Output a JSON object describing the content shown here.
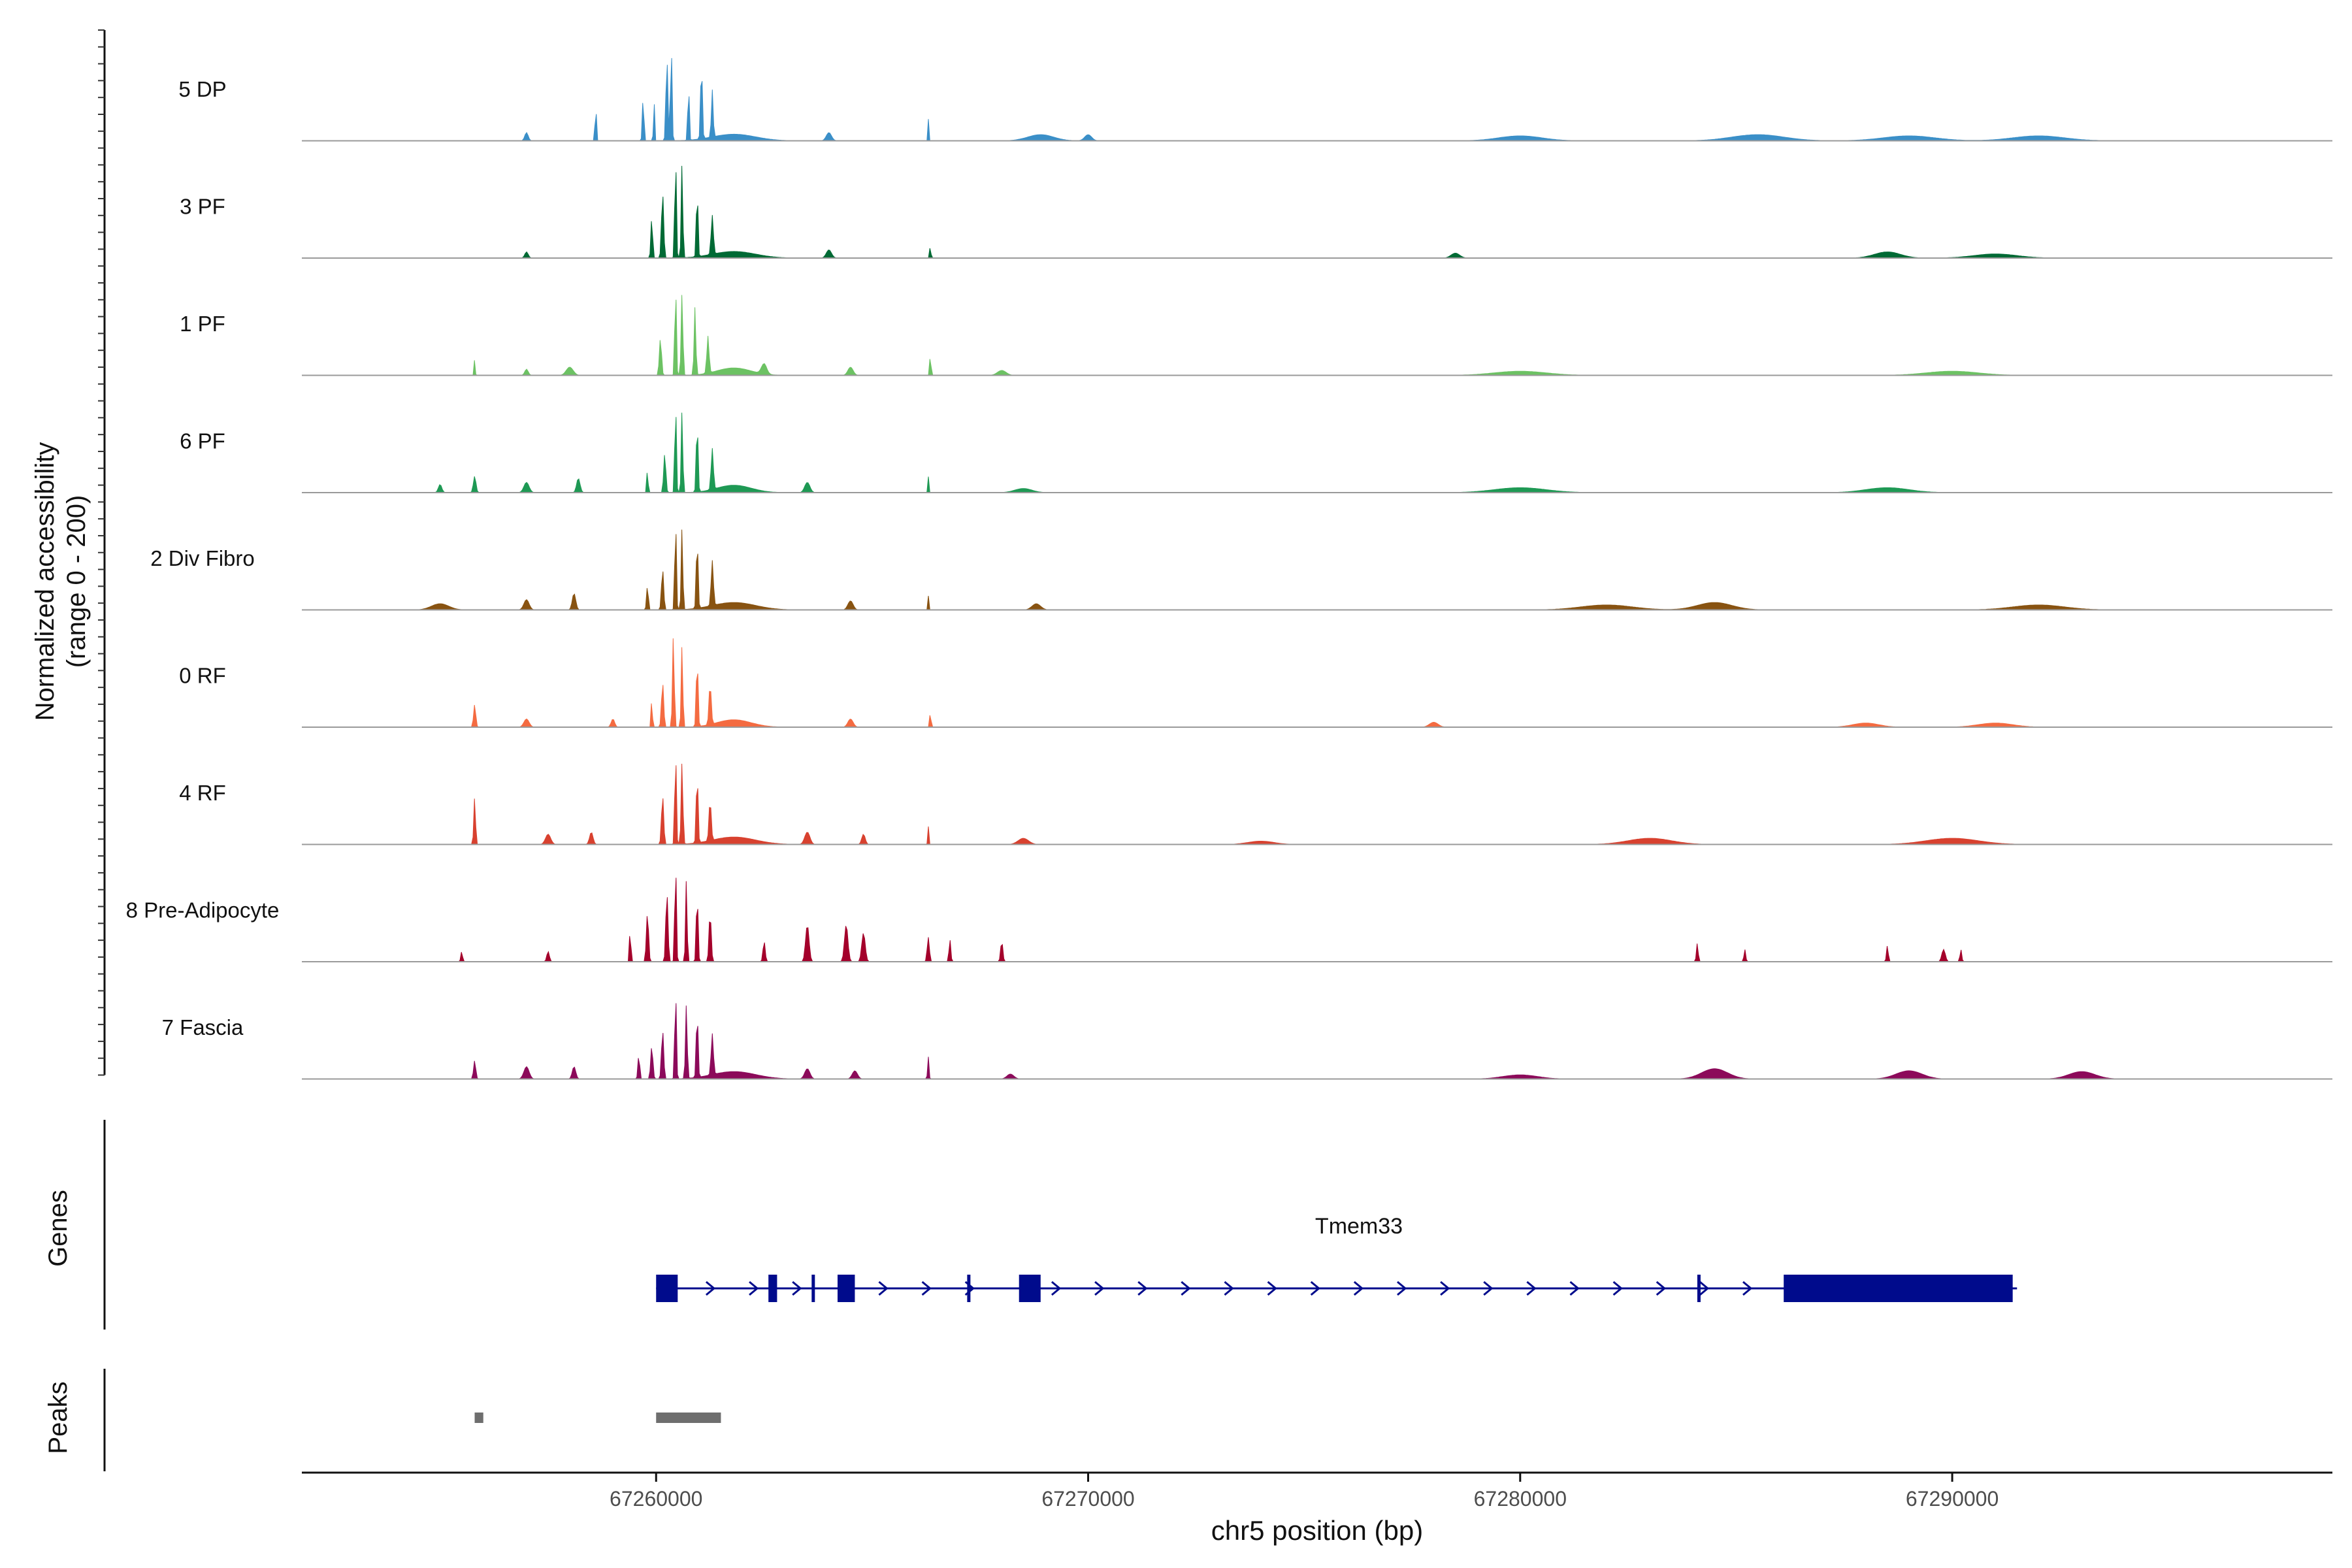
{
  "chart_data": {
    "type": "area",
    "region": "chr5:67251800-67298800",
    "y_axis_label_line1": "Normalized accessibility",
    "y_axis_label_line2": "(range 0 - 200)",
    "y_range": [
      0,
      200
    ],
    "x_label": "chr5 position (bp)",
    "x_range": [
      67251800,
      67298800
    ],
    "x_ticks": [
      {
        "value": 67260000,
        "label": "67260000"
      },
      {
        "value": 67270000,
        "label": "67270000"
      },
      {
        "value": 67280000,
        "label": "67280000"
      },
      {
        "value": 67290000,
        "label": "67290000"
      }
    ],
    "tracks": [
      {
        "name": "5 DP",
        "color": "#3a8fc8",
        "peaks": [
          [
            67258600,
            10,
            200
          ],
          [
            67259700,
            18,
            110
          ],
          [
            67259950,
            12,
            110
          ],
          [
            67260250,
            22,
            205
          ],
          [
            67260350,
            18,
            240
          ],
          [
            67260750,
            15,
            160
          ],
          [
            67261050,
            20,
            190
          ],
          [
            67261300,
            20,
            115
          ],
          [
            67266300,
            10,
            55
          ],
          [
            67257000,
            40,
            20
          ],
          [
            67264000,
            60,
            20
          ],
          [
            67270000,
            80,
            15
          ],
          [
            67285500,
            600,
            15
          ],
          [
            67289000,
            600,
            12
          ],
          [
            67261800,
            500,
            16
          ],
          [
            67268900,
            300,
            15
          ],
          [
            67280000,
            500,
            12
          ],
          [
            67292000,
            600,
            12
          ]
        ]
      },
      {
        "name": "3 PF",
        "color": "#006a35",
        "peaks": [
          [
            67259900,
            20,
            100
          ],
          [
            67260150,
            25,
            160
          ],
          [
            67260450,
            18,
            255
          ],
          [
            67260600,
            18,
            230
          ],
          [
            67260950,
            18,
            175
          ],
          [
            67261300,
            25,
            95
          ],
          [
            67266350,
            10,
            60
          ],
          [
            67257000,
            40,
            15
          ],
          [
            67264000,
            60,
            20
          ],
          [
            67278500,
            100,
            12
          ],
          [
            67288500,
            300,
            15
          ],
          [
            67261800,
            500,
            16
          ],
          [
            67291000,
            500,
            10
          ]
        ]
      },
      {
        "name": "1 PF",
        "color": "#6cc263",
        "peaks": [
          [
            67260100,
            25,
            90
          ],
          [
            67260450,
            18,
            225
          ],
          [
            67260600,
            20,
            200
          ],
          [
            67260900,
            20,
            165
          ],
          [
            67261200,
            25,
            90
          ],
          [
            67255800,
            12,
            40
          ],
          [
            67266350,
            12,
            75
          ],
          [
            67258000,
            80,
            20
          ],
          [
            67262500,
            60,
            25
          ],
          [
            67264500,
            60,
            20
          ],
          [
            67257000,
            40,
            15
          ],
          [
            67268000,
            100,
            12
          ],
          [
            67280000,
            600,
            10
          ],
          [
            67290000,
            600,
            10
          ],
          [
            67261800,
            400,
            18
          ]
        ]
      },
      {
        "name": "6 PF",
        "color": "#1e9954",
        "peaks": [
          [
            67259800,
            15,
            60
          ],
          [
            67260200,
            25,
            95
          ],
          [
            67260450,
            18,
            225
          ],
          [
            67260600,
            18,
            200
          ],
          [
            67260950,
            20,
            175
          ],
          [
            67261300,
            25,
            100
          ],
          [
            67255800,
            30,
            40
          ],
          [
            67258200,
            40,
            35
          ],
          [
            67266300,
            12,
            40
          ],
          [
            67257000,
            60,
            25
          ],
          [
            67263500,
            60,
            25
          ],
          [
            67255000,
            40,
            20
          ],
          [
            67261800,
            400,
            18
          ],
          [
            67268500,
            200,
            10
          ],
          [
            67280000,
            600,
            12
          ],
          [
            67288500,
            500,
            12
          ]
        ]
      },
      {
        "name": "2 Div Fibro",
        "color": "#885311",
        "peaks": [
          [
            67259800,
            20,
            60
          ],
          [
            67260150,
            25,
            100
          ],
          [
            67260450,
            18,
            225
          ],
          [
            67260600,
            18,
            200
          ],
          [
            67260950,
            20,
            175
          ],
          [
            67261300,
            25,
            110
          ],
          [
            67258100,
            40,
            40
          ],
          [
            67266300,
            12,
            35
          ],
          [
            67257000,
            60,
            25
          ],
          [
            67264500,
            60,
            22
          ],
          [
            67268800,
            100,
            15
          ],
          [
            67284500,
            400,
            18
          ],
          [
            67282000,
            600,
            12
          ],
          [
            67292000,
            600,
            12
          ],
          [
            67261800,
            500,
            18
          ],
          [
            67255000,
            200,
            15
          ]
        ]
      },
      {
        "name": "0 RF",
        "color": "#f46b41",
        "peaks": [
          [
            67259900,
            15,
            70
          ],
          [
            67260150,
            25,
            110
          ],
          [
            67260400,
            20,
            225
          ],
          [
            67260600,
            18,
            200
          ],
          [
            67260950,
            20,
            170
          ],
          [
            67261250,
            25,
            100
          ],
          [
            67255800,
            25,
            55
          ],
          [
            67266350,
            12,
            55
          ],
          [
            67259000,
            40,
            20
          ],
          [
            67264500,
            60,
            20
          ],
          [
            67257000,
            60,
            20
          ],
          [
            67278000,
            100,
            12
          ],
          [
            67288000,
            300,
            10
          ],
          [
            67291000,
            400,
            10
          ],
          [
            67261800,
            400,
            18
          ]
        ]
      },
      {
        "name": "4 RF",
        "color": "#d8412f",
        "peaks": [
          [
            67260150,
            25,
            120
          ],
          [
            67260450,
            18,
            235
          ],
          [
            67260600,
            20,
            200
          ],
          [
            67260950,
            20,
            175
          ],
          [
            67261250,
            25,
            100
          ],
          [
            67255800,
            20,
            115
          ],
          [
            67258500,
            40,
            30
          ],
          [
            67266300,
            12,
            45
          ],
          [
            67263500,
            60,
            30
          ],
          [
            67257500,
            60,
            25
          ],
          [
            67264800,
            40,
            25
          ],
          [
            67268500,
            120,
            15
          ],
          [
            67283000,
            500,
            15
          ],
          [
            67290000,
            600,
            15
          ],
          [
            67261800,
            500,
            18
          ],
          [
            67274000,
            300,
            8
          ]
        ]
      },
      {
        "name": "8 Pre-Adipocyte",
        "color": "#a4002b",
        "peaks": [
          [
            67259400,
            15,
            90
          ],
          [
            67259800,
            25,
            120
          ],
          [
            67260250,
            25,
            170
          ],
          [
            67260450,
            18,
            250
          ],
          [
            67260700,
            18,
            200
          ],
          [
            67260950,
            20,
            170
          ],
          [
            67261250,
            25,
            120
          ],
          [
            67263500,
            40,
            90
          ],
          [
            67264400,
            40,
            90
          ],
          [
            67264800,
            40,
            70
          ],
          [
            67262500,
            25,
            50
          ],
          [
            67266300,
            25,
            60
          ],
          [
            67266800,
            20,
            55
          ],
          [
            67268000,
            25,
            50
          ],
          [
            67255500,
            20,
            25
          ],
          [
            67257500,
            30,
            25
          ],
          [
            67284100,
            20,
            45
          ],
          [
            67285200,
            20,
            30
          ],
          [
            67288500,
            20,
            40
          ],
          [
            67289800,
            40,
            30
          ],
          [
            67290200,
            20,
            30
          ]
        ]
      },
      {
        "name": "7 Fascia",
        "color": "#8c0a5a",
        "peaks": [
          [
            67259600,
            20,
            60
          ],
          [
            67259900,
            25,
            80
          ],
          [
            67260150,
            25,
            120
          ],
          [
            67260450,
            18,
            225
          ],
          [
            67260700,
            20,
            180
          ],
          [
            67260950,
            20,
            165
          ],
          [
            67261300,
            25,
            100
          ],
          [
            67255800,
            25,
            45
          ],
          [
            67258100,
            40,
            30
          ],
          [
            67266300,
            15,
            55
          ],
          [
            67257000,
            60,
            30
          ],
          [
            67263500,
            60,
            25
          ],
          [
            67264600,
            60,
            20
          ],
          [
            67268200,
            80,
            12
          ],
          [
            67284500,
            300,
            25
          ],
          [
            67289000,
            300,
            20
          ],
          [
            67293000,
            300,
            18
          ],
          [
            67261800,
            500,
            18
          ],
          [
            67280000,
            400,
            10
          ]
        ]
      }
    ],
    "genes_label": "Genes",
    "gene": {
      "name": "Tmem33",
      "color": "#000b8c",
      "start": 67260000,
      "end": 67291500,
      "exons": [
        [
          67260000,
          67260500,
          "big"
        ],
        [
          67262600,
          67262800,
          "big"
        ],
        [
          67263600,
          67263700,
          "small"
        ],
        [
          67264200,
          67264600,
          "big"
        ],
        [
          67267200,
          67267300,
          "small"
        ],
        [
          67268400,
          67268900,
          "big"
        ],
        [
          67284100,
          67284200,
          "small"
        ],
        [
          67286100,
          67291400,
          "big"
        ]
      ]
    },
    "peaks_label": "Peaks",
    "peak_regions": [
      [
        67255800,
        67256000
      ],
      [
        67260000,
        67261500
      ]
    ]
  }
}
